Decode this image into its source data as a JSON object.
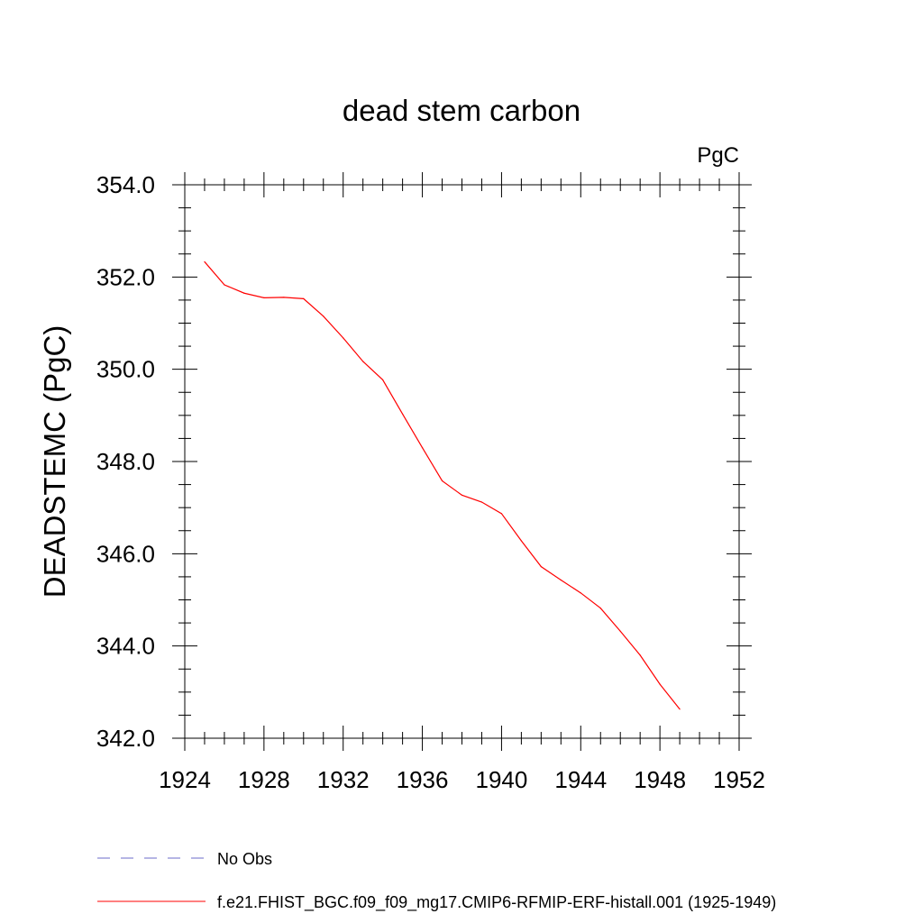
{
  "chart_data": {
    "type": "line",
    "title": "dead stem carbon",
    "units": "PgC",
    "ylabel": "DEADSTEMC  (PgC)",
    "xlabel": "",
    "xlim": [
      1924,
      1952
    ],
    "ylim": [
      342.0,
      354.0
    ],
    "x_ticks": [
      1924,
      1928,
      1932,
      1936,
      1940,
      1944,
      1948,
      1952
    ],
    "x_tick_labels": [
      "1924",
      "1928",
      "1932",
      "1936",
      "1940",
      "1944",
      "1948",
      "1952"
    ],
    "y_ticks": [
      342,
      344,
      346,
      348,
      350,
      352,
      354
    ],
    "y_tick_labels": [
      "342.0",
      "344.0",
      "346.0",
      "348.0",
      "350.0",
      "352.0",
      "354.0"
    ],
    "grid": false,
    "legend_position": "bottom",
    "series": [
      {
        "name": "No Obs",
        "color": "#6b6bc8",
        "dashed": true,
        "x": [],
        "y": []
      },
      {
        "name": "f.e21.FHIST_BGC.f09_f09_mg17.CMIP6-RFMIP-ERF-histall.001 (1925-1949)",
        "color": "#ff0000",
        "dashed": false,
        "x": [
          1925,
          1926,
          1927,
          1928,
          1929,
          1930,
          1931,
          1932,
          1933,
          1934,
          1935,
          1936,
          1937,
          1938,
          1939,
          1940,
          1941,
          1942,
          1943,
          1944,
          1945,
          1946,
          1947,
          1948,
          1949
        ],
        "y": [
          352.33,
          351.83,
          351.65,
          351.55,
          351.56,
          351.53,
          351.15,
          350.68,
          350.17,
          349.77,
          349.03,
          348.3,
          347.58,
          347.27,
          347.12,
          346.87,
          346.28,
          345.72,
          345.43,
          345.15,
          344.82,
          344.32,
          343.8,
          343.17,
          342.63
        ]
      }
    ]
  }
}
